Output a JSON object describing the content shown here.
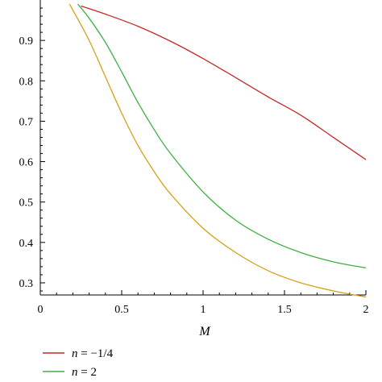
{
  "chart_data": {
    "type": "line",
    "title": "",
    "xlabel": "M",
    "ylabel": "",
    "xlim": [
      0,
      2
    ],
    "ylim": [
      0.27,
      1.0
    ],
    "grid": false,
    "legend_placement": "bottom-left",
    "x_ticks": [
      {
        "value": 0,
        "label": "0"
      },
      {
        "value": 0.5,
        "label": "0.5"
      },
      {
        "value": 1,
        "label": "1"
      },
      {
        "value": 1.5,
        "label": "1.5"
      },
      {
        "value": 2,
        "label": "2"
      }
    ],
    "y_ticks": [
      {
        "value": 0.3,
        "label": "0.3"
      },
      {
        "value": 0.4,
        "label": "0.4"
      },
      {
        "value": 0.5,
        "label": "0.5"
      },
      {
        "value": 0.6,
        "label": "0.6"
      },
      {
        "value": 0.7,
        "label": "0.7"
      },
      {
        "value": 0.8,
        "label": "0.8"
      },
      {
        "value": 0.9,
        "label": "0.9"
      }
    ],
    "series": [
      {
        "name": "n = −1/4",
        "legend_var": "n",
        "legend_rest": " = −1/4",
        "color": "#c62828",
        "x": [
          0.25,
          0.4,
          0.6,
          0.8,
          1.0,
          1.2,
          1.4,
          1.6,
          1.8,
          2.0
        ],
        "y": [
          0.985,
          0.965,
          0.935,
          0.898,
          0.855,
          0.808,
          0.76,
          0.715,
          0.66,
          0.605
        ]
      },
      {
        "name": "n = 2",
        "legend_var": "n",
        "legend_rest": " = 2",
        "color": "#3cb043",
        "x": [
          0.23,
          0.3,
          0.4,
          0.5,
          0.6,
          0.7,
          0.8,
          1.0,
          1.2,
          1.4,
          1.6,
          1.8,
          2.0
        ],
        "y": [
          0.99,
          0.955,
          0.895,
          0.822,
          0.746,
          0.679,
          0.62,
          0.525,
          0.455,
          0.408,
          0.375,
          0.352,
          0.337
        ]
      },
      {
        "name": "",
        "color": "#d4a017",
        "x": [
          0.18,
          0.2,
          0.3,
          0.4,
          0.5,
          0.6,
          0.7,
          0.8,
          1.0,
          1.2,
          1.4,
          1.6,
          1.8,
          2.0
        ],
        "y": [
          0.99,
          0.975,
          0.9,
          0.81,
          0.72,
          0.64,
          0.575,
          0.52,
          0.435,
          0.375,
          0.33,
          0.3,
          0.28,
          0.265
        ]
      }
    ]
  }
}
